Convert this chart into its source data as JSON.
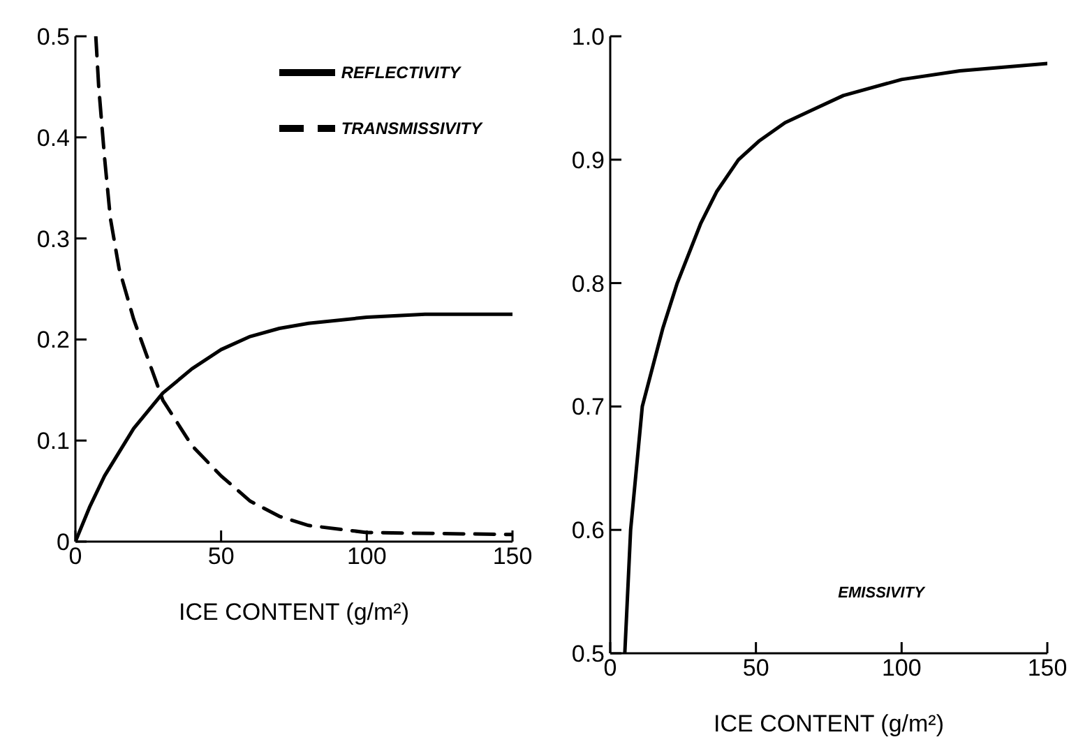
{
  "chart_data": [
    {
      "type": "line",
      "xlabel": "ICE CONTENT (g/m²)",
      "xlim": [
        0,
        150
      ],
      "xticks": [
        0,
        50,
        100,
        150
      ],
      "ylim": [
        0,
        0.5
      ],
      "yticks": [
        0,
        0.1,
        0.2,
        0.3,
        0.4,
        0.5
      ],
      "legend": "top right",
      "grid": false,
      "marker": "none",
      "series": [
        {
          "name": "REFLECTIVITY",
          "color": "#000000",
          "line_style": "solid",
          "x": [
            0,
            5,
            10,
            20,
            30,
            40,
            50,
            60,
            70,
            80,
            100,
            120,
            150
          ],
          "values": [
            0,
            0.035,
            0.065,
            0.112,
            0.147,
            0.171,
            0.19,
            0.203,
            0.211,
            0.216,
            0.222,
            0.225,
            0.225
          ]
        },
        {
          "name": "TRANSMISSIVITY",
          "color": "#000000",
          "line_style": "dashed",
          "x": [
            7,
            8,
            10,
            12,
            15,
            20,
            25,
            30,
            40,
            50,
            60,
            70,
            80,
            100,
            150
          ],
          "values": [
            0.5,
            0.45,
            0.38,
            0.32,
            0.27,
            0.22,
            0.18,
            0.14,
            0.095,
            0.065,
            0.04,
            0.025,
            0.016,
            0.009,
            0.007
          ]
        }
      ]
    },
    {
      "type": "line",
      "xlabel": "ICE CONTENT (g/m²)",
      "xlim": [
        0,
        150
      ],
      "xticks": [
        0,
        50,
        100,
        150
      ],
      "ylim": [
        0.5,
        1
      ],
      "yticks": [
        0.5,
        0.6,
        0.7,
        0.8,
        0.9,
        {
          "value": 1,
          "label": "1.0"
        }
      ],
      "legend": false,
      "grid": false,
      "marker": "none",
      "series": [
        {
          "name": "EMISSIVITY",
          "color": "#000000",
          "line_style": "solid",
          "x": [
            5,
            7,
            11,
            18,
            23,
            31,
            36.5,
            44,
            51,
            60,
            70,
            80,
            100,
            120,
            150
          ],
          "values": [
            0.5,
            0.6,
            0.7,
            0.763,
            0.8,
            0.848,
            0.874,
            0.9,
            0.915,
            0.93,
            0.941,
            0.952,
            0.965,
            0.972,
            0.978
          ]
        }
      ]
    }
  ]
}
